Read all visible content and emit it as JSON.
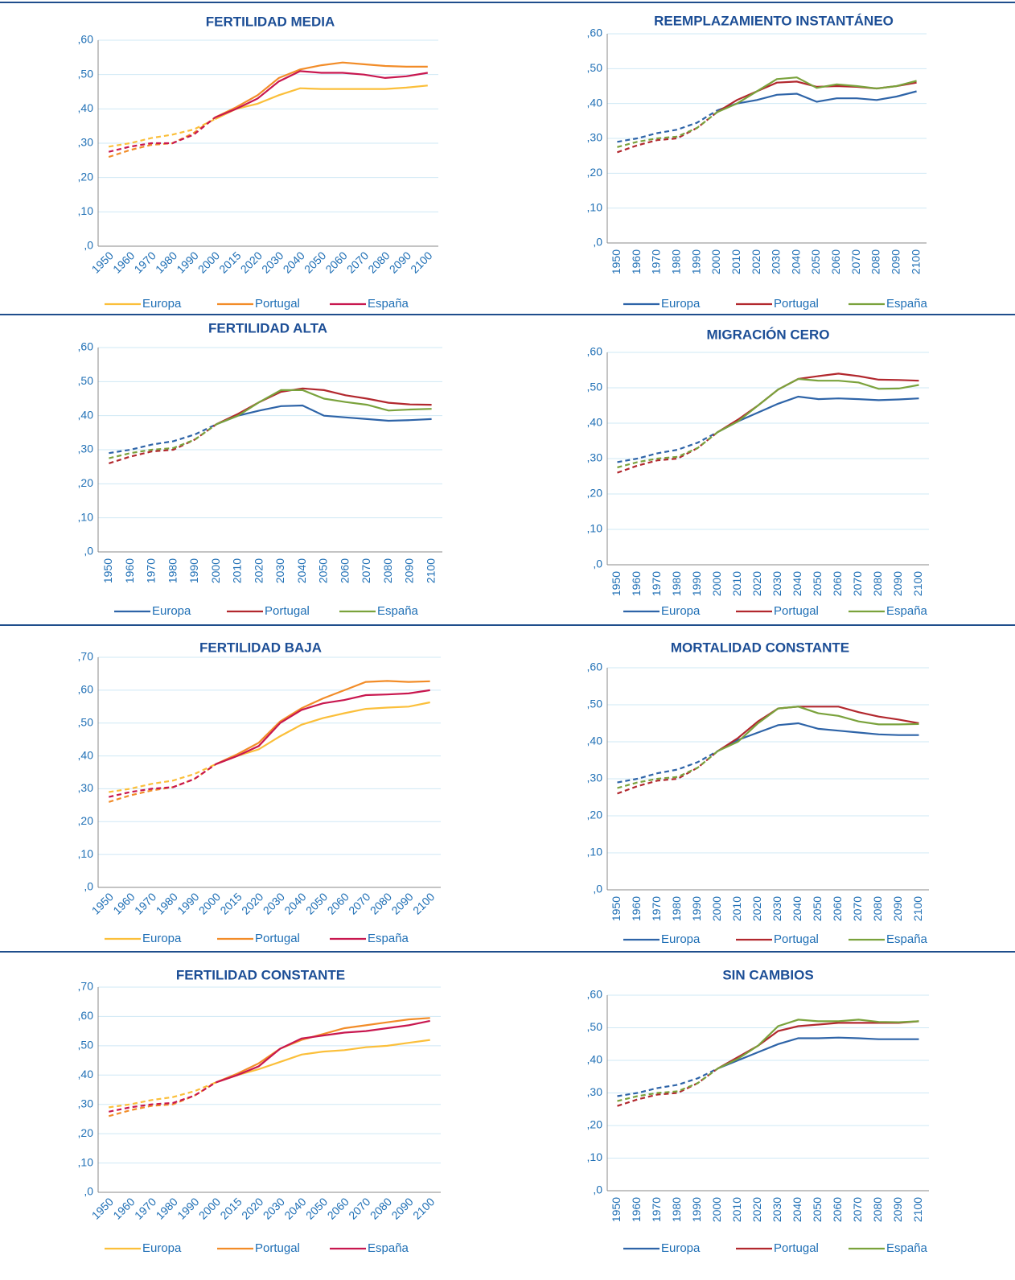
{
  "chart_data": [
    {
      "type": "line",
      "title": "FERTILIDAD MEDIA",
      "categories": [
        "1950",
        "1960",
        "1970",
        "1980",
        "1990",
        "2000",
        "2015",
        "2020",
        "2030",
        "2040",
        "2050",
        "2060",
        "2070",
        "2080",
        "2090",
        "2100"
      ],
      "series": [
        {
          "name": "Europa",
          "color": "#fbbf3a",
          "values": [
            0.29,
            0.3,
            0.315,
            0.325,
            0.34,
            0.37,
            0.4,
            0.415,
            0.44,
            0.46,
            0.458,
            0.458,
            0.458,
            0.458,
            0.462,
            0.468
          ]
        },
        {
          "name": "Portugal",
          "color": "#f28c28",
          "values": [
            0.26,
            0.28,
            0.295,
            0.3,
            0.33,
            0.375,
            0.405,
            0.44,
            0.49,
            0.515,
            0.527,
            0.535,
            0.53,
            0.525,
            0.523,
            0.523
          ]
        },
        {
          "name": "España",
          "color": "#c8174f",
          "values": [
            0.275,
            0.29,
            0.3,
            0.3,
            0.325,
            0.375,
            0.4,
            0.43,
            0.48,
            0.51,
            0.505,
            0.505,
            0.5,
            0.49,
            0.495,
            0.505
          ]
        }
      ],
      "ylim": [
        0,
        0.6
      ],
      "yticks": [
        {
          "value": 0,
          "label": ",0"
        },
        {
          "value": 0.1,
          "label": ",10"
        },
        {
          "value": 0.2,
          "label": ",20"
        },
        {
          "value": 0.3,
          "label": ",30"
        },
        {
          "value": 0.4,
          "label": ",40"
        },
        {
          "value": 0.5,
          "label": ",50"
        },
        {
          "value": 0.6,
          "label": ",60"
        }
      ],
      "grid": true
    },
    {
      "type": "line",
      "title": "REEMPLAZAMIENTO INSTANTÁNEO",
      "categories": [
        "1950",
        "1960",
        "1970",
        "1980",
        "1990",
        "2000",
        "2010",
        "2020",
        "2030",
        "2040",
        "2050",
        "2060",
        "2070",
        "2080",
        "2090",
        "2100"
      ],
      "series": [
        {
          "name": "Europa",
          "color": "#2e64a8",
          "values": [
            0.29,
            0.3,
            0.315,
            0.325,
            0.345,
            0.38,
            0.4,
            0.41,
            0.425,
            0.428,
            0.405,
            0.415,
            0.415,
            0.41,
            0.42,
            0.435
          ]
        },
        {
          "name": "Portugal",
          "color": "#b2282e",
          "values": [
            0.26,
            0.28,
            0.295,
            0.3,
            0.33,
            0.375,
            0.41,
            0.435,
            0.46,
            0.463,
            0.448,
            0.45,
            0.448,
            0.443,
            0.45,
            0.46
          ]
        },
        {
          "name": "España",
          "color": "#7aa23c",
          "values": [
            0.275,
            0.29,
            0.3,
            0.305,
            0.33,
            0.375,
            0.4,
            0.435,
            0.47,
            0.475,
            0.445,
            0.455,
            0.45,
            0.443,
            0.45,
            0.465
          ]
        }
      ],
      "ylim": [
        0,
        0.6
      ],
      "yticks": [
        {
          "value": 0,
          "label": ",0"
        },
        {
          "value": 0.1,
          "label": ",10"
        },
        {
          "value": 0.2,
          "label": ",20"
        },
        {
          "value": 0.3,
          "label": ",30"
        },
        {
          "value": 0.4,
          "label": ",40"
        },
        {
          "value": 0.5,
          "label": ",50"
        },
        {
          "value": 0.6,
          "label": ",60"
        }
      ],
      "grid": true
    },
    {
      "type": "line",
      "title": "FERTILIDAD ALTA",
      "categories": [
        "1950",
        "1960",
        "1970",
        "1980",
        "1990",
        "2000",
        "2010",
        "2020",
        "2030",
        "2040",
        "2050",
        "2060",
        "2070",
        "2080",
        "2090",
        "2100"
      ],
      "series": [
        {
          "name": "Europa",
          "color": "#2e64a8",
          "values": [
            0.29,
            0.3,
            0.315,
            0.325,
            0.345,
            0.375,
            0.4,
            0.415,
            0.428,
            0.43,
            0.4,
            0.395,
            0.39,
            0.385,
            0.387,
            0.39
          ]
        },
        {
          "name": "Portugal",
          "color": "#b2282e",
          "values": [
            0.26,
            0.28,
            0.295,
            0.3,
            0.33,
            0.375,
            0.405,
            0.44,
            0.47,
            0.48,
            0.475,
            0.46,
            0.45,
            0.438,
            0.433,
            0.432
          ]
        },
        {
          "name": "España",
          "color": "#7aa23c",
          "values": [
            0.275,
            0.29,
            0.3,
            0.305,
            0.33,
            0.375,
            0.4,
            0.44,
            0.475,
            0.475,
            0.45,
            0.44,
            0.432,
            0.415,
            0.418,
            0.42
          ]
        }
      ],
      "ylim": [
        0,
        0.6
      ],
      "yticks": [
        {
          "value": 0,
          "label": ",0"
        },
        {
          "value": 0.1,
          "label": ",10"
        },
        {
          "value": 0.2,
          "label": ",20"
        },
        {
          "value": 0.3,
          "label": ",30"
        },
        {
          "value": 0.4,
          "label": ",40"
        },
        {
          "value": 0.5,
          "label": ",50"
        },
        {
          "value": 0.6,
          "label": ",60"
        }
      ],
      "grid": true
    },
    {
      "type": "line",
      "title": "MIGRACIÓN CERO",
      "categories": [
        "1950",
        "1960",
        "1970",
        "1980",
        "1990",
        "2000",
        "2010",
        "2020",
        "2030",
        "2040",
        "2050",
        "2060",
        "2070",
        "2080",
        "2090",
        "2100"
      ],
      "series": [
        {
          "name": "Europa",
          "color": "#2e64a8",
          "values": [
            0.29,
            0.3,
            0.315,
            0.325,
            0.345,
            0.375,
            0.405,
            0.43,
            0.455,
            0.475,
            0.468,
            0.47,
            0.468,
            0.465,
            0.467,
            0.47
          ]
        },
        {
          "name": "Portugal",
          "color": "#b2282e",
          "values": [
            0.26,
            0.28,
            0.295,
            0.3,
            0.33,
            0.375,
            0.41,
            0.45,
            0.495,
            0.525,
            0.533,
            0.54,
            0.533,
            0.523,
            0.522,
            0.52
          ]
        },
        {
          "name": "España",
          "color": "#7aa23c",
          "values": [
            0.275,
            0.29,
            0.3,
            0.305,
            0.33,
            0.375,
            0.405,
            0.45,
            0.495,
            0.525,
            0.52,
            0.52,
            0.515,
            0.497,
            0.498,
            0.508
          ]
        }
      ],
      "ylim": [
        0,
        0.6
      ],
      "yticks": [
        {
          "value": 0,
          "label": ",0"
        },
        {
          "value": 0.1,
          "label": ",10"
        },
        {
          "value": 0.2,
          "label": ",20"
        },
        {
          "value": 0.3,
          "label": ",30"
        },
        {
          "value": 0.4,
          "label": ",40"
        },
        {
          "value": 0.5,
          "label": ",50"
        },
        {
          "value": 0.6,
          "label": ",60"
        }
      ],
      "grid": true
    },
    {
      "type": "line",
      "title": "FERTILIDAD BAJA",
      "categories": [
        "1950",
        "1960",
        "1970",
        "1980",
        "1990",
        "2000",
        "2015",
        "2020",
        "2030",
        "2040",
        "2050",
        "2060",
        "2070",
        "2080",
        "2090",
        "2100"
      ],
      "series": [
        {
          "name": "Europa",
          "color": "#fbbf3a",
          "values": [
            0.29,
            0.3,
            0.315,
            0.325,
            0.345,
            0.375,
            0.4,
            0.42,
            0.46,
            0.495,
            0.515,
            0.53,
            0.543,
            0.547,
            0.55,
            0.563
          ]
        },
        {
          "name": "Portugal",
          "color": "#f28c28",
          "values": [
            0.26,
            0.28,
            0.295,
            0.305,
            0.33,
            0.375,
            0.405,
            0.44,
            0.505,
            0.545,
            0.575,
            0.6,
            0.625,
            0.628,
            0.625,
            0.627
          ]
        },
        {
          "name": "España",
          "color": "#c8174f",
          "values": [
            0.275,
            0.29,
            0.3,
            0.305,
            0.33,
            0.375,
            0.4,
            0.43,
            0.5,
            0.54,
            0.56,
            0.57,
            0.585,
            0.587,
            0.59,
            0.6
          ]
        }
      ],
      "ylim": [
        0,
        0.7
      ],
      "yticks": [
        {
          "value": 0,
          "label": ",0"
        },
        {
          "value": 0.1,
          "label": ",10"
        },
        {
          "value": 0.2,
          "label": ",20"
        },
        {
          "value": 0.3,
          "label": ",30"
        },
        {
          "value": 0.4,
          "label": ",40"
        },
        {
          "value": 0.5,
          "label": ",50"
        },
        {
          "value": 0.6,
          "label": ",60"
        },
        {
          "value": 0.7,
          "label": ",70"
        }
      ],
      "grid": true
    },
    {
      "type": "line",
      "title": "MORTALIDAD CONSTANTE",
      "categories": [
        "1950",
        "1960",
        "1970",
        "1980",
        "1990",
        "2000",
        "2010",
        "2020",
        "2030",
        "2040",
        "2050",
        "2060",
        "2070",
        "2080",
        "2090",
        "2100"
      ],
      "series": [
        {
          "name": "Europa",
          "color": "#2e64a8",
          "values": [
            0.29,
            0.3,
            0.315,
            0.325,
            0.345,
            0.375,
            0.405,
            0.425,
            0.445,
            0.45,
            0.435,
            0.43,
            0.425,
            0.42,
            0.418,
            0.418
          ]
        },
        {
          "name": "Portugal",
          "color": "#b2282e",
          "values": [
            0.26,
            0.28,
            0.295,
            0.3,
            0.33,
            0.375,
            0.41,
            0.455,
            0.49,
            0.495,
            0.495,
            0.495,
            0.48,
            0.468,
            0.46,
            0.45
          ]
        },
        {
          "name": "España",
          "color": "#7aa23c",
          "values": [
            0.275,
            0.29,
            0.3,
            0.305,
            0.33,
            0.375,
            0.4,
            0.45,
            0.49,
            0.495,
            0.477,
            0.47,
            0.455,
            0.447,
            0.447,
            0.448
          ]
        }
      ],
      "ylim": [
        0,
        0.6
      ],
      "yticks": [
        {
          "value": 0,
          "label": ",0"
        },
        {
          "value": 0.1,
          "label": ",10"
        },
        {
          "value": 0.2,
          "label": ",20"
        },
        {
          "value": 0.3,
          "label": ",30"
        },
        {
          "value": 0.4,
          "label": ",40"
        },
        {
          "value": 0.5,
          "label": ",50"
        },
        {
          "value": 0.6,
          "label": ",60"
        }
      ],
      "grid": true
    },
    {
      "type": "line",
      "title": "FERTILIDAD CONSTANTE",
      "categories": [
        "1950",
        "1960",
        "1970",
        "1980",
        "1990",
        "2000",
        "2015",
        "2020",
        "2030",
        "2040",
        "2050",
        "2060",
        "2070",
        "2080",
        "2090",
        "2100"
      ],
      "series": [
        {
          "name": "Europa",
          "color": "#fbbf3a",
          "values": [
            0.29,
            0.3,
            0.315,
            0.325,
            0.345,
            0.375,
            0.4,
            0.42,
            0.445,
            0.47,
            0.48,
            0.485,
            0.495,
            0.5,
            0.51,
            0.52
          ]
        },
        {
          "name": "Portugal",
          "color": "#f28c28",
          "values": [
            0.26,
            0.28,
            0.295,
            0.3,
            0.33,
            0.375,
            0.405,
            0.44,
            0.49,
            0.52,
            0.54,
            0.56,
            0.57,
            0.58,
            0.59,
            0.595
          ]
        },
        {
          "name": "España",
          "color": "#c8174f",
          "values": [
            0.275,
            0.29,
            0.3,
            0.305,
            0.33,
            0.375,
            0.4,
            0.43,
            0.49,
            0.525,
            0.535,
            0.545,
            0.55,
            0.56,
            0.57,
            0.585
          ]
        }
      ],
      "ylim": [
        0,
        0.7
      ],
      "yticks": [
        {
          "value": 0,
          "label": ",0"
        },
        {
          "value": 0.1,
          "label": ",10"
        },
        {
          "value": 0.2,
          "label": ",20"
        },
        {
          "value": 0.3,
          "label": ",30"
        },
        {
          "value": 0.4,
          "label": ",40"
        },
        {
          "value": 0.5,
          "label": ",50"
        },
        {
          "value": 0.6,
          "label": ",60"
        },
        {
          "value": 0.7,
          "label": ",70"
        }
      ],
      "grid": true
    },
    {
      "type": "line",
      "title": "SIN CAMBIOS",
      "categories": [
        "1950",
        "1960",
        "1970",
        "1980",
        "1990",
        "2000",
        "2010",
        "2020",
        "2030",
        "2040",
        "2050",
        "2060",
        "2070",
        "2080",
        "2090",
        "2100"
      ],
      "series": [
        {
          "name": "Europa",
          "color": "#2e64a8",
          "values": [
            0.29,
            0.3,
            0.315,
            0.325,
            0.345,
            0.375,
            0.4,
            0.425,
            0.45,
            0.468,
            0.468,
            0.47,
            0.468,
            0.465,
            0.465,
            0.465
          ]
        },
        {
          "name": "Portugal",
          "color": "#b2282e",
          "values": [
            0.26,
            0.28,
            0.295,
            0.3,
            0.33,
            0.375,
            0.41,
            0.445,
            0.49,
            0.505,
            0.51,
            0.515,
            0.515,
            0.515,
            0.515,
            0.52
          ]
        },
        {
          "name": "España",
          "color": "#7aa23c",
          "values": [
            0.275,
            0.29,
            0.3,
            0.305,
            0.33,
            0.375,
            0.405,
            0.445,
            0.505,
            0.525,
            0.52,
            0.52,
            0.525,
            0.518,
            0.517,
            0.52
          ]
        }
      ],
      "ylim": [
        0,
        0.6
      ],
      "yticks": [
        {
          "value": 0,
          "label": ",0"
        },
        {
          "value": 0.1,
          "label": ",10"
        },
        {
          "value": 0.2,
          "label": ",20"
        },
        {
          "value": 0.3,
          "label": ",30"
        },
        {
          "value": 0.4,
          "label": ",40"
        },
        {
          "value": 0.5,
          "label": ",50"
        },
        {
          "value": 0.6,
          "label": ",60"
        }
      ],
      "grid": true
    }
  ]
}
